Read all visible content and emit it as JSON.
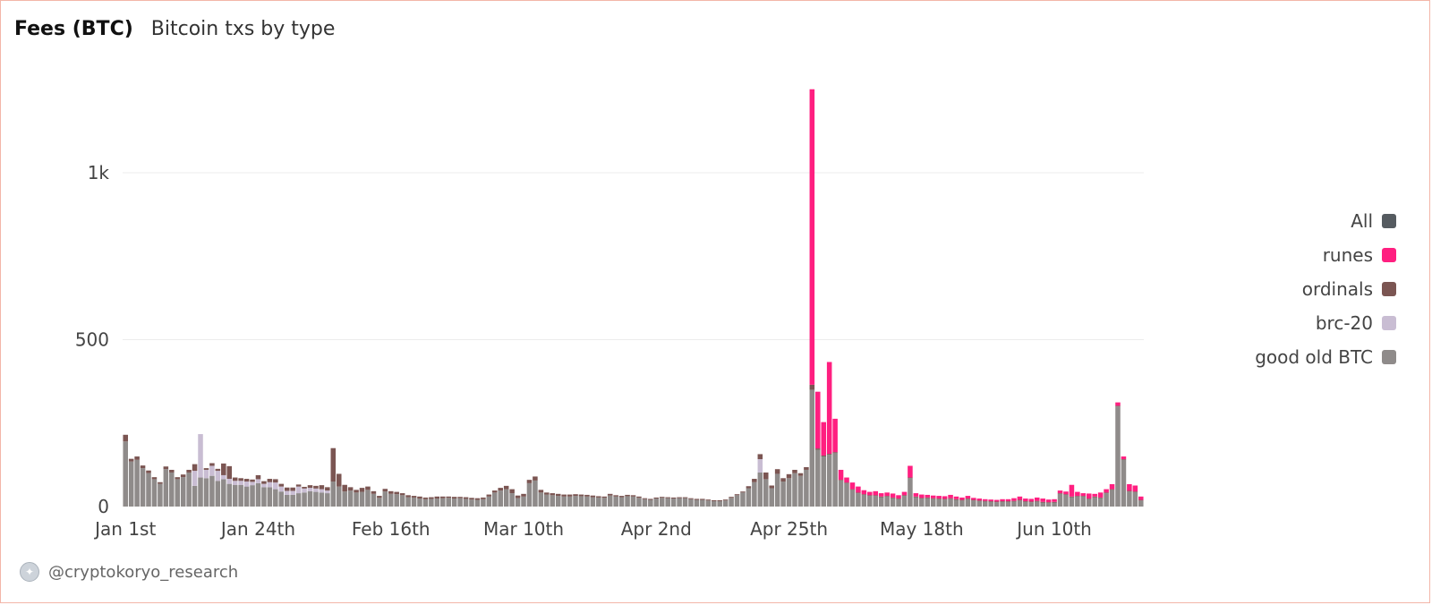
{
  "header": {
    "title": "Fees (BTC)",
    "subtitle": "Bitcoin txs by type"
  },
  "footer": {
    "handle": "@cryptokoryo_research"
  },
  "colors": {
    "all": "#555b60",
    "runes": "#ff1f80",
    "ordinals": "#7b5552",
    "brc20": "#c9bdd3",
    "btc": "#8f8b8a",
    "grid": "#ececec",
    "axis": "#444444"
  },
  "legend": [
    {
      "label": "All",
      "color": "#555b60"
    },
    {
      "label": "runes",
      "color": "#ff1f80"
    },
    {
      "label": "ordinals",
      "color": "#7b5552"
    },
    {
      "label": "brc-20",
      "color": "#c9bdd3"
    },
    {
      "label": "good old BTC",
      "color": "#8f8b8a"
    }
  ],
  "chart_data": {
    "type": "bar",
    "stacked": true,
    "title": "Fees (BTC)",
    "subtitle": "Bitcoin txs by type",
    "ylim": [
      0,
      1260
    ],
    "yticks": [
      0,
      500,
      1000
    ],
    "ytick_labels": [
      "0",
      "500",
      "1k"
    ],
    "x_tick_labels": [
      {
        "index": 0,
        "label": "Jan 1st"
      },
      {
        "index": 23,
        "label": "Jan 24th"
      },
      {
        "index": 46,
        "label": "Feb 16th"
      },
      {
        "index": 69,
        "label": "Mar 10th"
      },
      {
        "index": 92,
        "label": "Apr 2nd"
      },
      {
        "index": 115,
        "label": "Apr 25th"
      },
      {
        "index": 138,
        "label": "May 18th"
      },
      {
        "index": 161,
        "label": "Jun 10th"
      }
    ],
    "legend_position": "right",
    "grid": true,
    "series": [
      {
        "name": "good old BTC",
        "values": [
          195,
          135,
          140,
          115,
          100,
          82,
          68,
          112,
          102,
          82,
          88,
          102,
          62,
          87,
          85,
          92,
          77,
          82,
          68,
          65,
          65,
          60,
          64,
          70,
          58,
          58,
          52,
          45,
          35,
          35,
          40,
          42,
          46,
          44,
          42,
          40,
          75,
          60,
          45,
          48,
          42,
          44,
          50,
          38,
          26,
          45,
          38,
          37,
          34,
          28,
          27,
          24,
          22,
          23,
          24,
          25,
          26,
          24,
          25,
          23,
          21,
          20,
          22,
          30,
          42,
          48,
          52,
          40,
          25,
          30,
          70,
          78,
          42,
          36,
          34,
          32,
          30,
          30,
          32,
          31,
          30,
          28,
          27,
          26,
          33,
          30,
          28,
          31,
          30,
          26,
          22,
          20,
          24,
          26,
          25,
          24,
          25,
          25,
          22,
          20,
          20,
          18,
          16,
          16,
          18,
          26,
          34,
          42,
          55,
          73,
          102,
          82,
          55,
          98,
          75,
          85,
          100,
          92,
          110,
          350,
          170,
          150,
          155,
          160,
          78,
          70,
          50,
          40,
          35,
          32,
          32,
          28,
          30,
          25,
          22,
          32,
          85,
          28,
          24,
          25,
          23,
          22,
          21,
          23,
          20,
          18,
          22,
          18,
          16,
          15,
          14,
          13,
          14,
          14,
          15,
          18,
          14,
          13,
          15,
          12,
          11,
          12,
          38,
          35,
          28,
          30,
          30,
          22,
          28,
          25,
          40,
          50,
          300,
          140,
          45,
          43,
          18
        ]
      },
      {
        "name": "brc-20",
        "values": [
          0,
          0,
          0,
          0,
          0,
          0,
          0,
          0,
          0,
          0,
          0,
          0,
          45,
          130,
          25,
          30,
          30,
          12,
          15,
          12,
          12,
          15,
          10,
          12,
          10,
          15,
          20,
          15,
          12,
          12,
          20,
          12,
          10,
          10,
          10,
          8,
          0,
          0,
          0,
          0,
          0,
          0,
          0,
          0,
          0,
          0,
          0,
          0,
          0,
          0,
          0,
          0,
          0,
          0,
          0,
          0,
          0,
          0,
          0,
          0,
          0,
          0,
          0,
          0,
          0,
          0,
          0,
          0,
          0,
          0,
          0,
          0,
          0,
          0,
          0,
          0,
          0,
          0,
          0,
          0,
          0,
          0,
          0,
          0,
          0,
          0,
          0,
          0,
          0,
          0,
          0,
          0,
          0,
          0,
          0,
          0,
          0,
          0,
          0,
          0,
          0,
          0,
          0,
          0,
          0,
          0,
          0,
          0,
          0,
          0,
          40,
          0,
          0,
          0,
          0,
          0,
          0,
          0,
          0,
          0,
          0,
          0,
          0,
          0,
          0,
          0,
          0,
          0,
          0,
          0,
          0,
          0,
          0,
          0,
          0,
          0,
          0,
          0,
          0,
          0,
          0,
          0,
          0,
          0,
          0,
          0,
          0,
          0,
          0,
          0,
          0,
          0,
          0,
          0,
          0,
          0,
          0,
          0,
          0,
          0,
          0,
          0,
          0,
          0,
          0,
          0,
          0,
          0,
          0,
          0,
          0,
          0,
          0,
          0,
          0,
          0,
          0
        ]
      },
      {
        "name": "ordinals",
        "values": [
          20,
          8,
          10,
          8,
          8,
          6,
          5,
          8,
          8,
          6,
          8,
          8,
          20,
          0,
          5,
          8,
          6,
          35,
          38,
          10,
          8,
          8,
          7,
          12,
          8,
          10,
          10,
          8,
          10,
          10,
          6,
          5,
          8,
          8,
          12,
          10,
          100,
          38,
          20,
          10,
          8,
          12,
          10,
          8,
          6,
          8,
          8,
          7,
          6,
          6,
          5,
          6,
          5,
          5,
          6,
          5,
          4,
          5,
          4,
          5,
          5,
          5,
          5,
          6,
          6,
          8,
          10,
          12,
          8,
          8,
          10,
          12,
          8,
          6,
          6,
          6,
          6,
          6,
          5,
          5,
          5,
          5,
          4,
          4,
          5,
          4,
          4,
          4,
          4,
          4,
          3,
          3,
          3,
          3,
          3,
          3,
          3,
          3,
          3,
          3,
          3,
          3,
          3,
          3,
          3,
          3,
          3,
          3,
          6,
          10,
          15,
          20,
          8,
          14,
          10,
          12,
          10,
          8,
          8,
          15,
          4,
          3,
          3,
          3,
          2,
          2,
          2,
          2,
          2,
          2,
          2,
          2,
          2,
          2,
          2,
          2,
          2,
          2,
          2,
          2,
          2,
          2,
          2,
          2,
          2,
          2,
          2,
          2,
          2,
          2,
          2,
          2,
          2,
          2,
          2,
          2,
          2,
          2,
          2,
          2,
          2,
          2,
          2,
          2,
          2,
          2,
          2,
          2,
          2,
          2,
          2,
          2,
          2,
          2,
          2,
          2,
          2
        ]
      },
      {
        "name": "runes",
        "values": [
          0,
          0,
          0,
          0,
          0,
          0,
          0,
          0,
          0,
          0,
          0,
          0,
          0,
          0,
          0,
          0,
          0,
          0,
          0,
          0,
          0,
          0,
          0,
          0,
          0,
          0,
          0,
          0,
          0,
          0,
          0,
          0,
          0,
          0,
          0,
          0,
          0,
          0,
          0,
          0,
          0,
          0,
          0,
          0,
          0,
          0,
          0,
          0,
          0,
          0,
          0,
          0,
          0,
          0,
          0,
          0,
          0,
          0,
          0,
          0,
          0,
          0,
          0,
          0,
          0,
          0,
          0,
          0,
          0,
          0,
          0,
          0,
          0,
          0,
          0,
          0,
          0,
          0,
          0,
          0,
          0,
          0,
          0,
          0,
          0,
          0,
          0,
          0,
          0,
          0,
          0,
          0,
          0,
          0,
          0,
          0,
          0,
          0,
          0,
          0,
          0,
          0,
          0,
          0,
          0,
          0,
          0,
          0,
          0,
          0,
          0,
          0,
          0,
          0,
          0,
          0,
          0,
          0,
          0,
          885,
          170,
          100,
          275,
          100,
          30,
          15,
          20,
          18,
          12,
          10,
          12,
          10,
          10,
          12,
          10,
          10,
          35,
          10,
          10,
          8,
          8,
          8,
          8,
          10,
          8,
          7,
          8,
          6,
          6,
          5,
          5,
          5,
          6,
          6,
          8,
          10,
          8,
          8,
          10,
          10,
          8,
          8,
          8,
          8,
          35,
          12,
          8,
          15,
          8,
          15,
          10,
          15,
          10,
          8,
          20,
          18,
          10
        ]
      }
    ]
  }
}
